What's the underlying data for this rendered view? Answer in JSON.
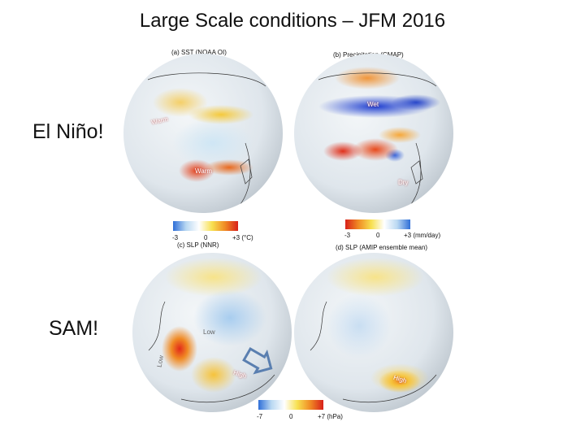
{
  "title": "Large Scale conditions – JFM 2016",
  "labels": {
    "el_nino": "El Niño!",
    "sam": "SAM!"
  },
  "panels": {
    "a": {
      "caption": "(a) SST (NOAA OI)",
      "annotations": [
        "Warm",
        "Warm"
      ]
    },
    "b": {
      "caption": "(b) Precipitation (CMAP)",
      "annotations": [
        "Wet",
        "Dry"
      ]
    },
    "c": {
      "caption": "(c) SLP (NNR)",
      "annotations": [
        "Low",
        "High",
        "Low"
      ]
    },
    "d": {
      "caption": "(d) SLP (AMIP ensemble mean)",
      "annotations": [
        "High"
      ]
    }
  },
  "colorbars": {
    "sst": {
      "min": "-3",
      "mid": "0",
      "max": "+3 (°C)"
    },
    "precip": {
      "min": "-3",
      "mid": "0",
      "max": "+3 (mm/day)"
    },
    "slp": {
      "min": "-7",
      "mid": "0",
      "max": "+7 (hPa)"
    }
  },
  "colors": {
    "warm": "#e8401c",
    "cold": "#2f5fd0",
    "neutral": "#e9edf1",
    "arrow": "#5a7fb0"
  }
}
